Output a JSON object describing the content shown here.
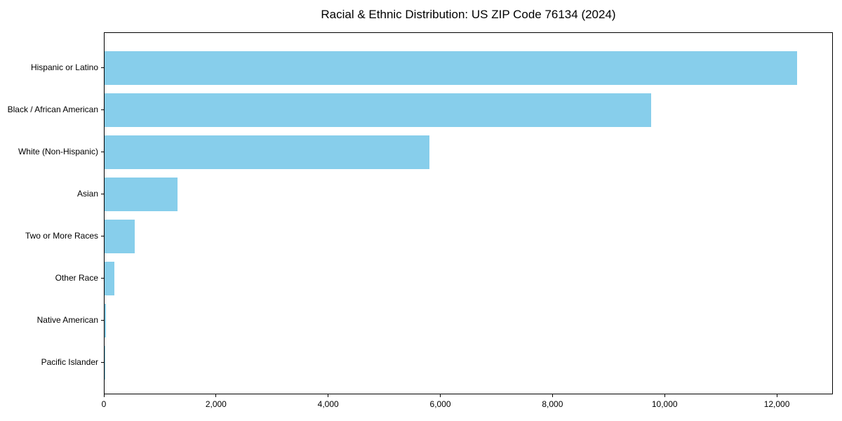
{
  "figure": {
    "background": "#ffffff"
  },
  "chart_data": {
    "type": "bar",
    "orientation": "horizontal",
    "title": "Racial & Ethnic Distribution: US ZIP Code 76134 (2024)",
    "categories": [
      "Hispanic or Latino",
      "Black / African American",
      "White (Non-Hispanic)",
      "Asian",
      "Two or More Races",
      "Other Race",
      "Native American",
      "Pacific Islander"
    ],
    "values": [
      12370,
      9760,
      5805,
      1300,
      540,
      175,
      30,
      10
    ],
    "xlabel": "",
    "ylabel": "",
    "xlim": [
      0,
      13000
    ],
    "xticks": [
      0,
      2000,
      4000,
      6000,
      8000,
      10000,
      12000
    ],
    "xtick_labels": [
      "0",
      "2,000",
      "4,000",
      "6,000",
      "8,000",
      "10,000",
      "12,000"
    ],
    "bar_color": "#87CEEB",
    "axis_color": "#000000",
    "text_color": "#000000",
    "grid": false,
    "legend": null
  }
}
